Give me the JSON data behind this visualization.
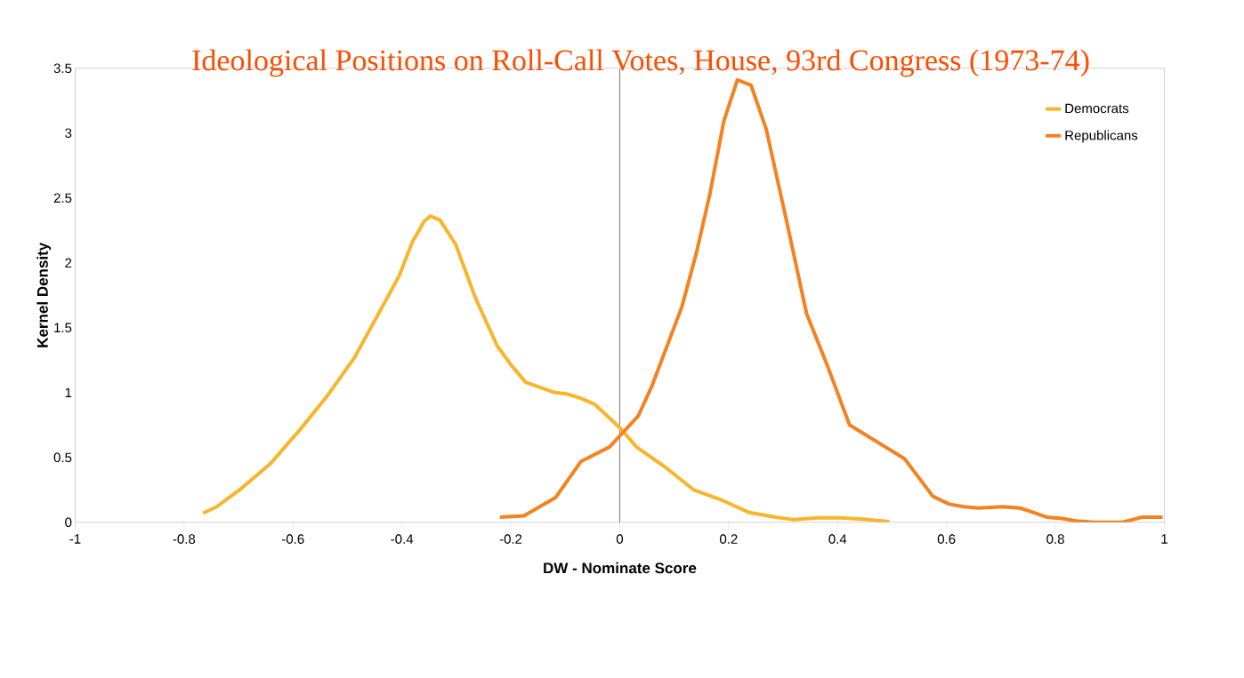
{
  "chart_data": {
    "type": "line",
    "title": "Ideological Positions on Roll-Call Votes, House, 93rd Congress (1973-74)",
    "xlabel": "DW - Nominate Score",
    "ylabel": "Kernel Density",
    "xlim": [
      -1,
      1
    ],
    "ylim": [
      0,
      3.5
    ],
    "xticks": [
      -1,
      -0.8,
      -0.6,
      -0.4,
      -0.2,
      0,
      0.2,
      0.4,
      0.6,
      0.8,
      1
    ],
    "yticks": [
      0,
      0.5,
      1,
      1.5,
      2,
      2.5,
      3,
      3.5
    ],
    "grid": false,
    "legend": "top right",
    "marker": "none",
    "line_style": "solid",
    "ref_lines": [
      {
        "axis": "x",
        "value": 0,
        "color": "#555555"
      }
    ],
    "series": [
      {
        "name": "Democrats",
        "color": "#f9b52a",
        "x": [
          -0.765,
          -0.74,
          -0.695,
          -0.642,
          -0.588,
          -0.536,
          -0.487,
          -0.444,
          -0.405,
          -0.381,
          -0.359,
          -0.348,
          -0.33,
          -0.301,
          -0.265,
          -0.225,
          -0.199,
          -0.173,
          -0.119,
          -0.098,
          -0.074,
          -0.046,
          0,
          0.031,
          0.082,
          0.136,
          0.188,
          0.238,
          0.286,
          0.32,
          0.363,
          0.407,
          0.458,
          0.495
        ],
        "values": [
          0.07,
          0.12,
          0.26,
          0.45,
          0.71,
          0.98,
          1.27,
          1.6,
          1.9,
          2.16,
          2.32,
          2.36,
          2.33,
          2.14,
          1.73,
          1.36,
          1.21,
          1.08,
          1.0,
          0.99,
          0.96,
          0.91,
          0.73,
          0.58,
          0.43,
          0.25,
          0.17,
          0.075,
          0.04,
          0.02,
          0.035,
          0.035,
          0.02,
          0.005
        ]
      },
      {
        "name": "Republicans",
        "color": "#f58220",
        "x": [
          -0.22,
          -0.176,
          -0.118,
          -0.071,
          -0.019,
          0.034,
          0.059,
          0.114,
          0.141,
          0.166,
          0.191,
          0.216,
          0.241,
          0.269,
          0.307,
          0.343,
          0.382,
          0.422,
          0.523,
          0.575,
          0.605,
          0.632,
          0.659,
          0.703,
          0.735,
          0.757,
          0.784,
          0.812,
          0.838,
          0.871,
          0.923,
          0.959,
          0.997
        ],
        "values": [
          0.04,
          0.05,
          0.19,
          0.47,
          0.58,
          0.82,
          1.05,
          1.66,
          2.08,
          2.54,
          3.09,
          3.41,
          3.37,
          3.03,
          2.31,
          1.61,
          1.2,
          0.75,
          0.49,
          0.2,
          0.14,
          0.12,
          0.11,
          0.12,
          0.11,
          0.08,
          0.04,
          0.03,
          0.01,
          0.0,
          0.0,
          0.04,
          0.04
        ]
      }
    ]
  }
}
